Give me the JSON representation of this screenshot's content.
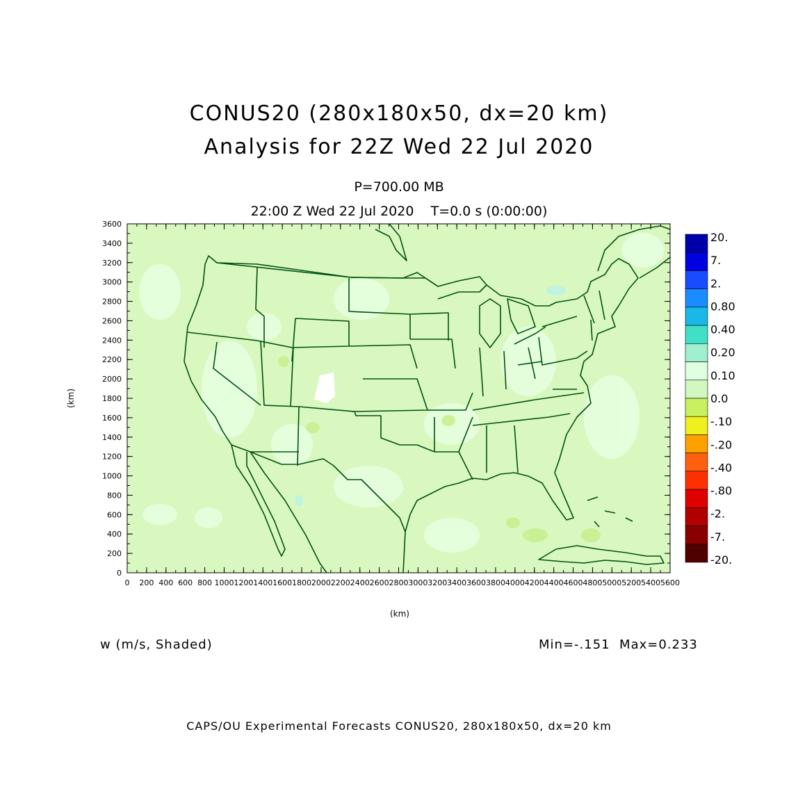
{
  "title": {
    "line1": "CONUS20 (280x180x50, dx=20 km)",
    "line2": "Analysis for 22Z Wed 22 Jul 2020"
  },
  "level_label": "P=700.00 MB",
  "time_label": "22:00 Z Wed 22 Jul 2020    T=0.0 s (0:00:00)",
  "axes": {
    "x_label": "(km)",
    "y_label": "(km)",
    "x_ticks": [
      "0",
      "200",
      "400",
      "600",
      "800",
      "1000",
      "1200",
      "1400",
      "1600",
      "1800",
      "2000",
      "2200",
      "2400",
      "2600",
      "2800",
      "3000",
      "3200",
      "3400",
      "3600",
      "3800",
      "4000",
      "4200",
      "4400",
      "4600",
      "4800",
      "5000",
      "5200",
      "5400",
      "5600"
    ],
    "y_ticks": [
      "0",
      "200",
      "400",
      "600",
      "800",
      "1000",
      "1200",
      "1400",
      "1600",
      "1800",
      "2000",
      "2200",
      "2400",
      "2600",
      "2800",
      "3000",
      "3200",
      "3400",
      "3600"
    ],
    "x_range": [
      0,
      5600
    ],
    "y_range": [
      0,
      3600
    ]
  },
  "legend": {
    "labels": [
      "20.",
      "7.",
      "2.",
      "0.80",
      "0.40",
      "0.20",
      "0.10",
      "0.0",
      "-.10",
      "-.20",
      "-.40",
      "-.80",
      "-2.",
      "-7.",
      "-20."
    ],
    "colors": [
      "#0000a8",
      "#0000e0",
      "#1a4cff",
      "#1a8cff",
      "#1ab8e8",
      "#40e0c8",
      "#a0f0d0",
      "#e0ffe0",
      "#d0f8c0",
      "#c8f060",
      "#f0f020",
      "#ffa000",
      "#ff6010",
      "#ff3000",
      "#e00000",
      "#b00000",
      "#880000",
      "#500000"
    ]
  },
  "field": {
    "variable": "w (m/s, Shaded)",
    "stats": "Min=-.151  Max=0.233"
  },
  "map": {
    "background_color": "#d8f8c0",
    "boundary_color": "#005010"
  },
  "credit": "CAPS/OU Experimental Forecasts  CONUS20, 280x180x50, dx=20 km"
}
